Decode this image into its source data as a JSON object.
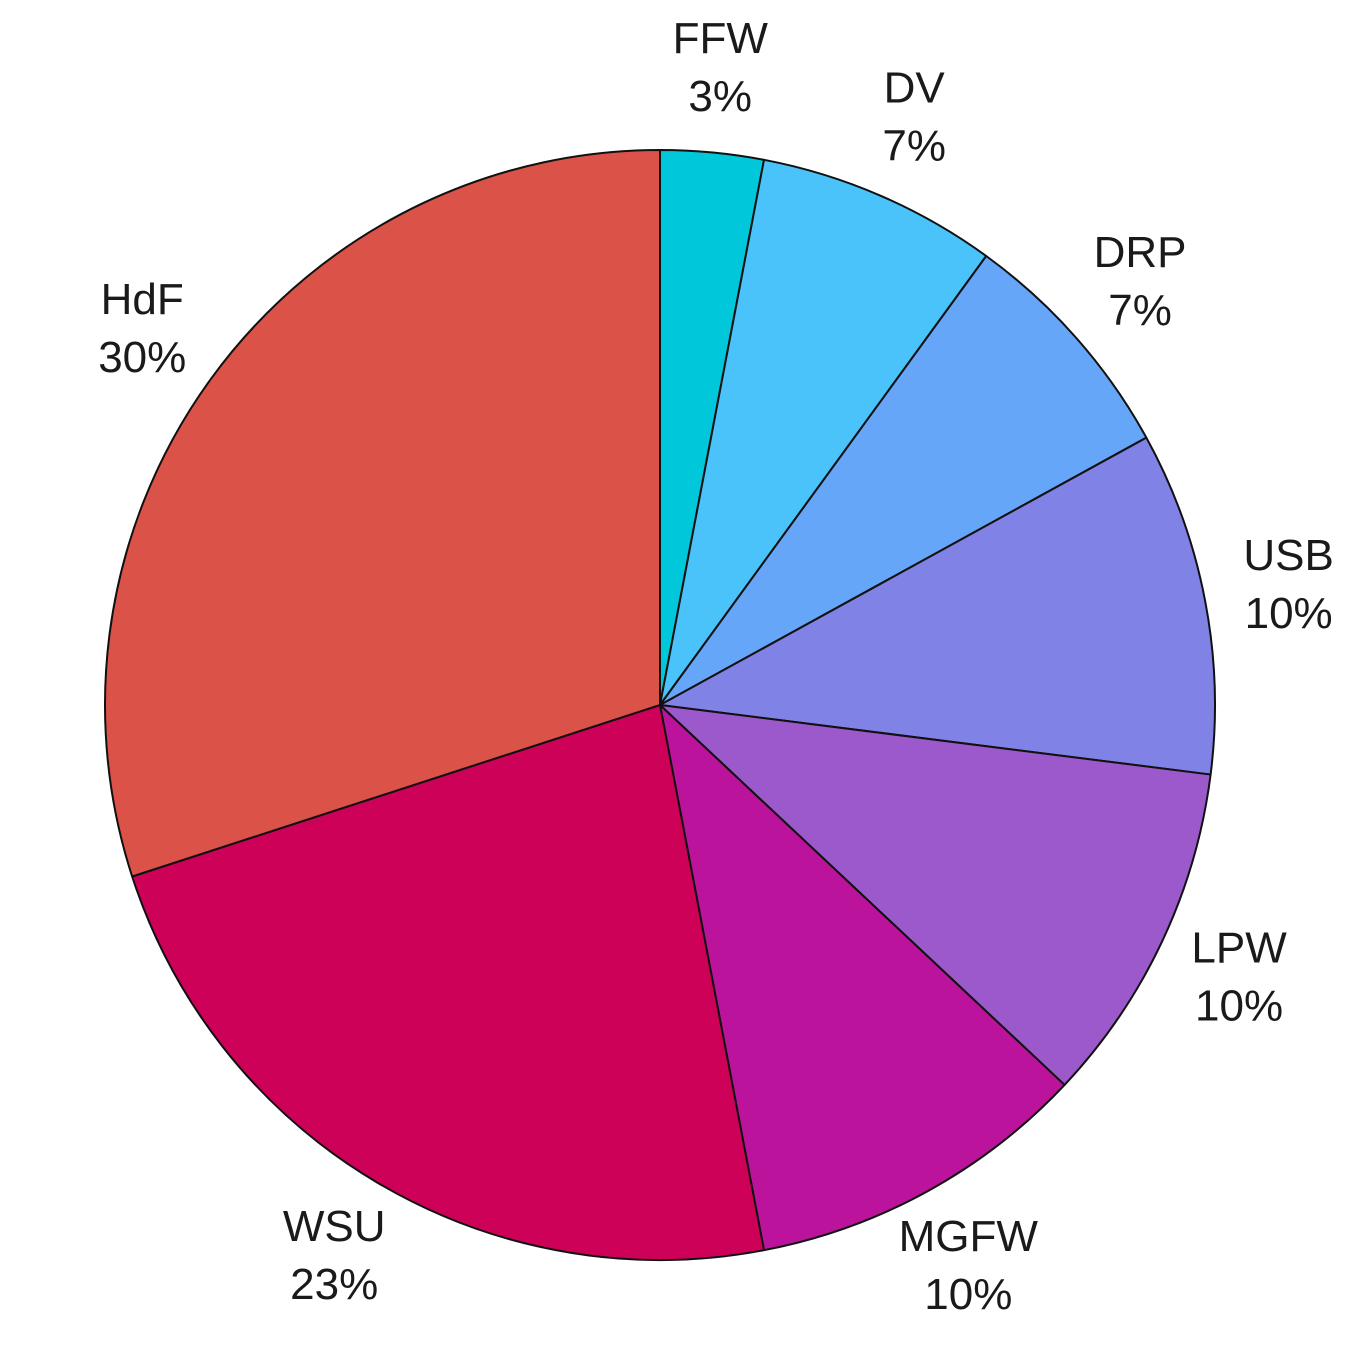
{
  "chart_data": {
    "type": "pie",
    "start_angle_deg": 0,
    "direction": "clockwise",
    "slices": [
      {
        "label": "FFW",
        "value": 3,
        "display": "3%",
        "color": "#00C8DA"
      },
      {
        "label": "DV",
        "value": 7,
        "display": "7%",
        "color": "#4AC3FA"
      },
      {
        "label": "DRP",
        "value": 7,
        "display": "7%",
        "color": "#66A6F8"
      },
      {
        "label": "USB",
        "value": 10,
        "display": "10%",
        "color": "#8082E6"
      },
      {
        "label": "LPW",
        "value": 10,
        "display": "10%",
        "color": "#9C59CC"
      },
      {
        "label": "MGFW",
        "value": 10,
        "display": "10%",
        "color": "#BB139C"
      },
      {
        "label": "WSU",
        "value": 23,
        "display": "23%",
        "color": "#CE0158"
      },
      {
        "label": "HdF",
        "value": 30,
        "display": "30%",
        "color": "#DB5248"
      }
    ]
  }
}
